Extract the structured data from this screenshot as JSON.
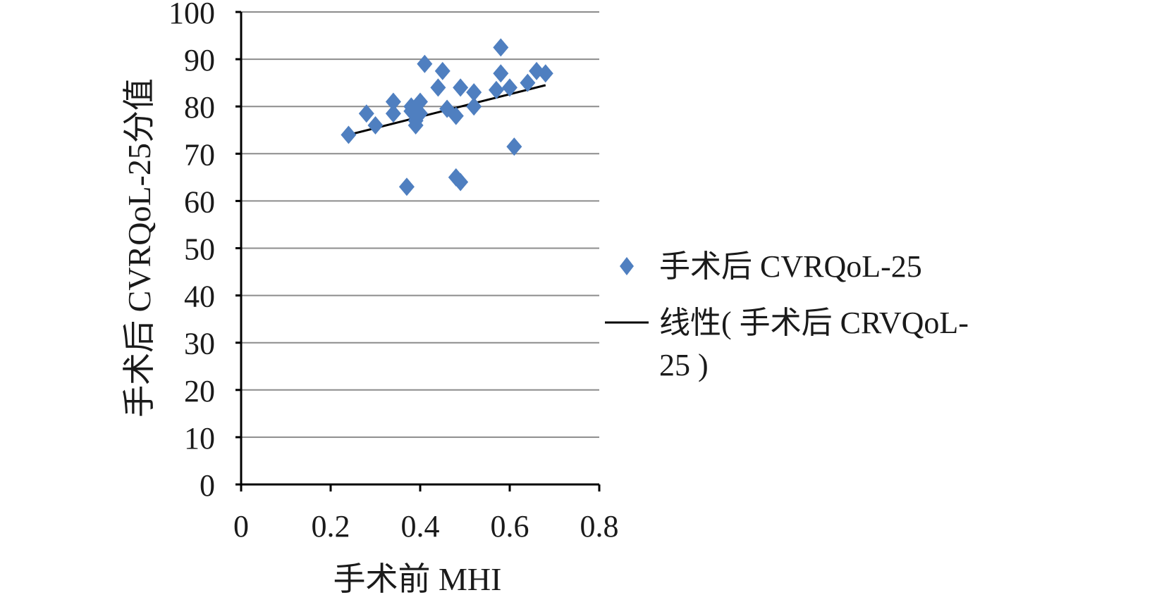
{
  "chart_data": {
    "type": "scatter",
    "xlabel": "手术前 MHI",
    "ylabel": "手术后 CVRQoL-25分值",
    "xlim": [
      0,
      0.8
    ],
    "ylim": [
      0,
      100
    ],
    "x_ticks": [
      "0",
      "0.2",
      "0.4",
      "0.6",
      "0.8"
    ],
    "y_ticks": [
      "0",
      "10",
      "20",
      "30",
      "40",
      "50",
      "60",
      "70",
      "80",
      "90",
      "100"
    ],
    "grid": "horizontal",
    "legend_position": "right",
    "series": [
      {
        "name": "手术后 CVRQoL-25",
        "marker": "diamond",
        "color": "#4f7fc0",
        "points": [
          [
            0.24,
            74
          ],
          [
            0.28,
            78.5
          ],
          [
            0.3,
            76
          ],
          [
            0.34,
            81
          ],
          [
            0.34,
            78.5
          ],
          [
            0.37,
            63
          ],
          [
            0.38,
            80
          ],
          [
            0.38,
            79
          ],
          [
            0.39,
            76
          ],
          [
            0.39,
            77
          ],
          [
            0.4,
            81
          ],
          [
            0.4,
            78.5
          ],
          [
            0.41,
            89
          ],
          [
            0.44,
            84
          ],
          [
            0.45,
            87.5
          ],
          [
            0.46,
            79.5
          ],
          [
            0.48,
            78
          ],
          [
            0.48,
            65
          ],
          [
            0.49,
            64
          ],
          [
            0.49,
            84
          ],
          [
            0.52,
            80
          ],
          [
            0.52,
            83
          ],
          [
            0.57,
            83.5
          ],
          [
            0.58,
            92.5
          ],
          [
            0.58,
            87
          ],
          [
            0.6,
            84
          ],
          [
            0.61,
            71.5
          ],
          [
            0.64,
            85
          ],
          [
            0.66,
            87.5
          ],
          [
            0.68,
            87
          ]
        ]
      },
      {
        "name": "线性( 手术后 CRVQoL-25 )",
        "legend_lines": [
          "线性( 手术后 CRVQoL-",
          "25 )"
        ],
        "type": "line",
        "color": "#000000",
        "points": [
          [
            0.24,
            74
          ],
          [
            0.68,
            84.5
          ]
        ]
      }
    ]
  }
}
